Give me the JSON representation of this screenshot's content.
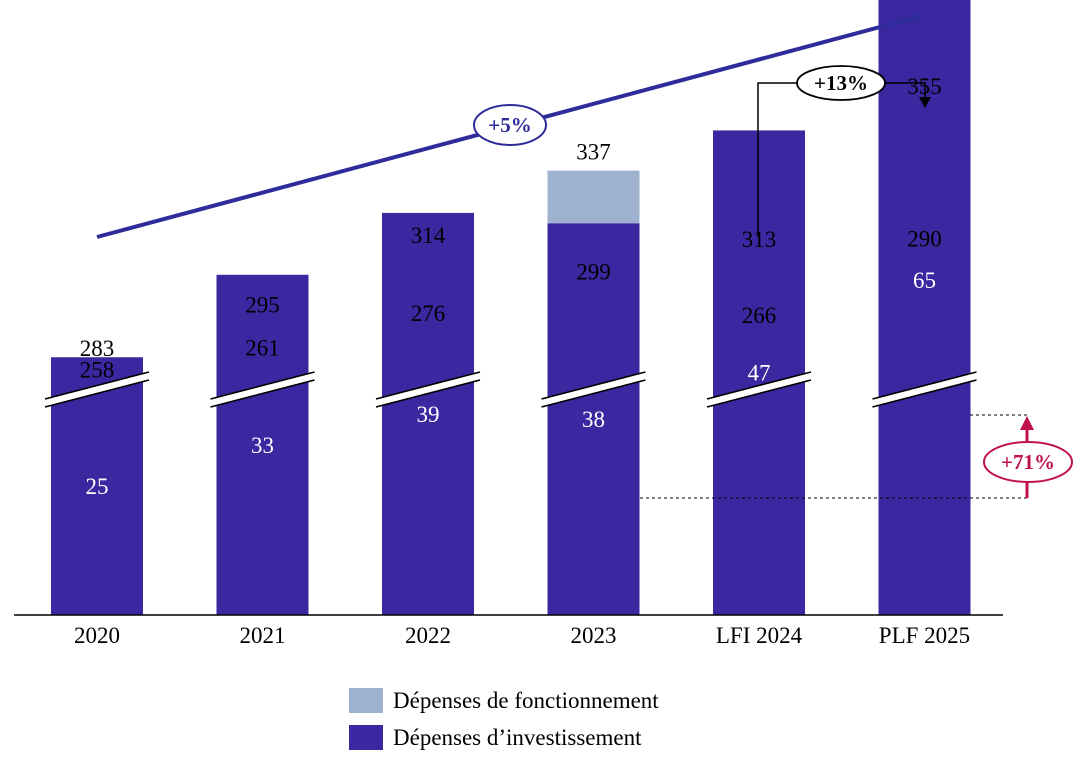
{
  "chart_data": {
    "type": "bar",
    "stacked": true,
    "categories": [
      "2020",
      "2021",
      "2022",
      "2023",
      "LFI 2024",
      "PLF 2025"
    ],
    "series": [
      {
        "name": "Dépenses d’investissement",
        "values": [
          25,
          33,
          39,
          38,
          47,
          65
        ],
        "color": "#3b27a0"
      },
      {
        "name": "Dépenses de fonctionnement",
        "values": [
          258,
          261,
          276,
          299,
          266,
          290
        ],
        "color": "#9eb1cf"
      }
    ],
    "totals": [
      283,
      295,
      314,
      337,
      313,
      355
    ],
    "axis_break": true,
    "grid": false,
    "legend_position": "bottom",
    "annotations": {
      "trend": "+5%",
      "lfi_to_plf": "+13%",
      "investment_growth": "+71%"
    },
    "colors": {
      "trend": "#2e2c9a",
      "investment_growth": "#c0114f",
      "axis": "#000000"
    }
  }
}
